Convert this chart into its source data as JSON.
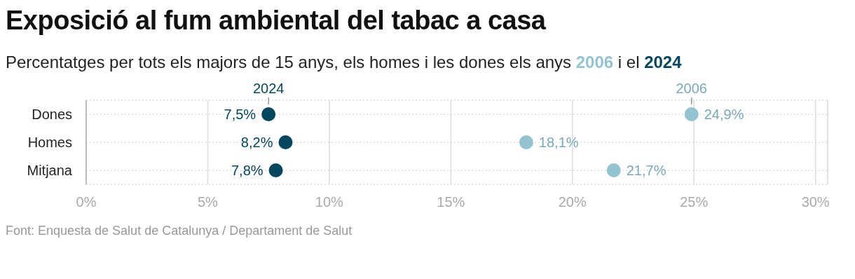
{
  "chart_data": {
    "type": "scatter",
    "orientation": "horizontal",
    "title": "Exposició al fum ambiental del tabac a casa",
    "subtitle": "Percentatges per tots els majors de 15 anys, els homes i les dones els anys 2006 i el 2024",
    "categories": [
      "Dones",
      "Homes",
      "Mitjana"
    ],
    "series": [
      {
        "name": "2024",
        "color": "#03475f",
        "values": [
          7.5,
          8.2,
          7.8
        ],
        "value_labels": [
          "7,5%",
          "8,2%",
          "7,8%"
        ]
      },
      {
        "name": "2006",
        "color": "#94c4cf",
        "values": [
          24.9,
          18.1,
          21.7
        ],
        "value_labels": [
          "24,9%",
          "18,1%",
          "21,7%"
        ]
      }
    ],
    "xlim": [
      0,
      30.5
    ],
    "xticks": [
      {
        "value": 0,
        "label": "0%"
      },
      {
        "value": 5,
        "label": "5%"
      },
      {
        "value": 10,
        "label": "10%"
      },
      {
        "value": 15,
        "label": "15%"
      },
      {
        "value": 20,
        "label": "20%"
      },
      {
        "value": 25,
        "label": "25%"
      },
      {
        "value": 30,
        "label": "30%"
      }
    ],
    "grid": true,
    "marker": "circle",
    "annotations": [
      "Font: Enquesta de Salut de Catalunya / Departament de Salut"
    ]
  }
}
